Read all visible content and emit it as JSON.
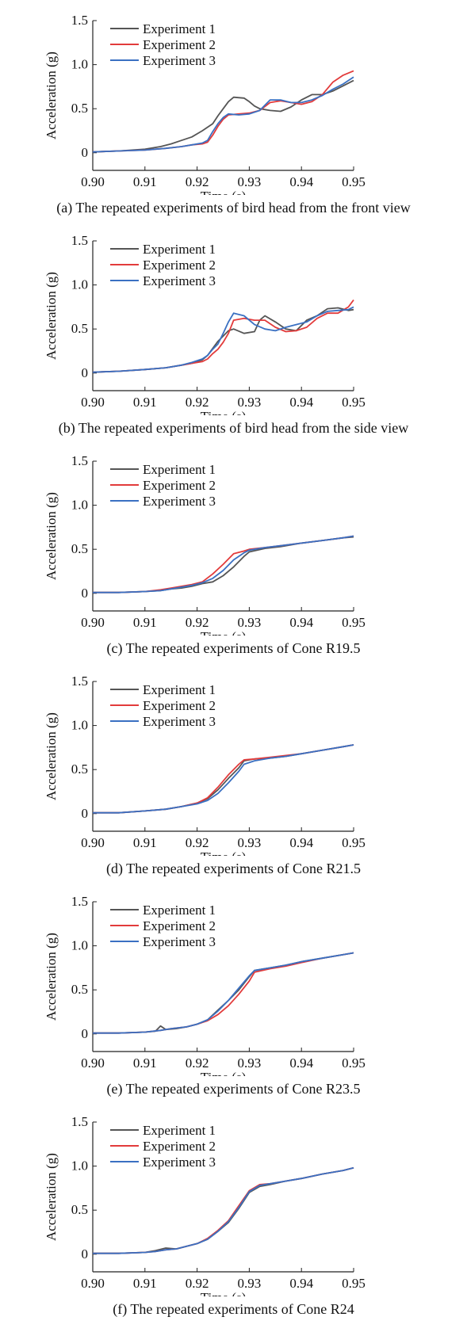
{
  "chart_data": [
    {
      "type": "line",
      "caption": "(a) The repeated experiments of bird head from the front view",
      "xlabel": "Time (s)",
      "ylabel": "Acceleration (g)",
      "xlim": [
        0.9,
        0.95
      ],
      "ylim": [
        -0.2,
        1.5
      ],
      "xticks": [
        "0.90",
        "0.91",
        "0.92",
        "0.93",
        "0.94",
        "0.95"
      ],
      "yticks": [
        "0",
        "0.5",
        "1.0",
        "1.5"
      ],
      "grid": false,
      "legend": "top-left",
      "series": [
        {
          "name": "Experiment 1",
          "color": "#555555",
          "x": [
            0.9,
            0.905,
            0.91,
            0.913,
            0.915,
            0.917,
            0.919,
            0.921,
            0.923,
            0.924,
            0.925,
            0.926,
            0.927,
            0.929,
            0.93,
            0.931,
            0.932,
            0.934,
            0.936,
            0.938,
            0.94,
            0.942,
            0.944,
            0.946,
            0.948,
            0.95
          ],
          "y": [
            0.01,
            0.02,
            0.04,
            0.07,
            0.1,
            0.14,
            0.18,
            0.25,
            0.33,
            0.42,
            0.5,
            0.58,
            0.63,
            0.62,
            0.58,
            0.53,
            0.5,
            0.48,
            0.47,
            0.52,
            0.6,
            0.66,
            0.66,
            0.7,
            0.76,
            0.82
          ]
        },
        {
          "name": "Experiment 2",
          "color": "#e23b3b",
          "x": [
            0.9,
            0.905,
            0.91,
            0.914,
            0.917,
            0.919,
            0.921,
            0.922,
            0.923,
            0.924,
            0.925,
            0.926,
            0.928,
            0.93,
            0.932,
            0.934,
            0.936,
            0.938,
            0.94,
            0.942,
            0.944,
            0.946,
            0.948,
            0.95
          ],
          "y": [
            0.01,
            0.02,
            0.03,
            0.05,
            0.07,
            0.09,
            0.1,
            0.12,
            0.2,
            0.3,
            0.38,
            0.43,
            0.44,
            0.45,
            0.48,
            0.57,
            0.59,
            0.57,
            0.55,
            0.58,
            0.66,
            0.8,
            0.88,
            0.93
          ]
        },
        {
          "name": "Experiment 3",
          "color": "#3a70c2",
          "x": [
            0.9,
            0.905,
            0.91,
            0.914,
            0.917,
            0.919,
            0.921,
            0.922,
            0.923,
            0.924,
            0.925,
            0.926,
            0.928,
            0.93,
            0.932,
            0.934,
            0.936,
            0.938,
            0.94,
            0.942,
            0.944,
            0.946,
            0.948,
            0.95
          ],
          "y": [
            0.01,
            0.02,
            0.03,
            0.05,
            0.07,
            0.09,
            0.11,
            0.14,
            0.24,
            0.33,
            0.4,
            0.44,
            0.43,
            0.44,
            0.48,
            0.6,
            0.6,
            0.57,
            0.57,
            0.6,
            0.65,
            0.72,
            0.78,
            0.86
          ]
        }
      ]
    },
    {
      "type": "line",
      "caption": "(b) The repeated experiments of bird head from the side view",
      "xlabel": "Time (s)",
      "ylabel": "Acceleration (g)",
      "xlim": [
        0.9,
        0.95
      ],
      "ylim": [
        -0.2,
        1.5
      ],
      "xticks": [
        "0.90",
        "0.91",
        "0.92",
        "0.93",
        "0.94",
        "0.95"
      ],
      "yticks": [
        "0",
        "0.5",
        "1.0",
        "1.5"
      ],
      "grid": false,
      "legend": "top-left",
      "series": [
        {
          "name": "Experiment 1",
          "color": "#555555",
          "x": [
            0.9,
            0.905,
            0.91,
            0.914,
            0.917,
            0.919,
            0.921,
            0.922,
            0.923,
            0.924,
            0.925,
            0.926,
            0.927,
            0.929,
            0.931,
            0.932,
            0.933,
            0.935,
            0.937,
            0.939,
            0.941,
            0.943,
            0.945,
            0.947,
            0.949,
            0.95
          ],
          "y": [
            0.01,
            0.02,
            0.04,
            0.06,
            0.09,
            0.11,
            0.15,
            0.2,
            0.28,
            0.36,
            0.42,
            0.48,
            0.5,
            0.45,
            0.47,
            0.6,
            0.65,
            0.58,
            0.5,
            0.48,
            0.6,
            0.65,
            0.73,
            0.74,
            0.71,
            0.72
          ]
        },
        {
          "name": "Experiment 2",
          "color": "#e23b3b",
          "x": [
            0.9,
            0.905,
            0.91,
            0.914,
            0.917,
            0.919,
            0.921,
            0.922,
            0.923,
            0.924,
            0.925,
            0.926,
            0.927,
            0.929,
            0.931,
            0.933,
            0.935,
            0.937,
            0.939,
            0.941,
            0.943,
            0.945,
            0.947,
            0.949,
            0.95
          ],
          "y": [
            0.01,
            0.02,
            0.04,
            0.06,
            0.09,
            0.11,
            0.13,
            0.16,
            0.22,
            0.27,
            0.35,
            0.45,
            0.6,
            0.62,
            0.6,
            0.6,
            0.52,
            0.47,
            0.48,
            0.52,
            0.62,
            0.68,
            0.68,
            0.75,
            0.83
          ]
        },
        {
          "name": "Experiment 3",
          "color": "#3a70c2",
          "x": [
            0.9,
            0.905,
            0.91,
            0.914,
            0.917,
            0.919,
            0.921,
            0.922,
            0.923,
            0.924,
            0.925,
            0.926,
            0.927,
            0.929,
            0.931,
            0.933,
            0.935,
            0.937,
            0.939,
            0.941,
            0.943,
            0.945,
            0.947,
            0.949,
            0.95
          ],
          "y": [
            0.01,
            0.02,
            0.04,
            0.06,
            0.09,
            0.12,
            0.16,
            0.2,
            0.27,
            0.33,
            0.45,
            0.58,
            0.68,
            0.65,
            0.55,
            0.5,
            0.48,
            0.52,
            0.55,
            0.58,
            0.65,
            0.7,
            0.71,
            0.72,
            0.75
          ]
        }
      ]
    },
    {
      "type": "line",
      "caption": "(c) The repeated experiments of Cone R19.5",
      "xlabel": "Time (s)",
      "ylabel": "Acceleration (g)",
      "xlim": [
        0.9,
        0.95
      ],
      "ylim": [
        -0.2,
        1.5
      ],
      "xticks": [
        "0.90",
        "0.91",
        "0.92",
        "0.93",
        "0.94",
        "0.95"
      ],
      "yticks": [
        "0",
        "0.5",
        "1.0",
        "1.5"
      ],
      "grid": false,
      "legend": "top-left",
      "series": [
        {
          "name": "Experiment 1",
          "color": "#555555",
          "x": [
            0.9,
            0.905,
            0.91,
            0.913,
            0.915,
            0.917,
            0.919,
            0.921,
            0.923,
            0.925,
            0.927,
            0.929,
            0.93,
            0.933,
            0.936,
            0.94,
            0.944,
            0.948,
            0.95
          ],
          "y": [
            0.01,
            0.01,
            0.02,
            0.03,
            0.05,
            0.06,
            0.08,
            0.11,
            0.13,
            0.2,
            0.3,
            0.42,
            0.47,
            0.51,
            0.53,
            0.57,
            0.6,
            0.63,
            0.64
          ]
        },
        {
          "name": "Experiment 2",
          "color": "#e23b3b",
          "x": [
            0.9,
            0.905,
            0.91,
            0.913,
            0.915,
            0.917,
            0.919,
            0.921,
            0.923,
            0.925,
            0.927,
            0.929,
            0.93,
            0.933,
            0.936,
            0.94,
            0.944,
            0.948,
            0.95
          ],
          "y": [
            0.01,
            0.01,
            0.02,
            0.04,
            0.06,
            0.08,
            0.1,
            0.13,
            0.22,
            0.33,
            0.45,
            0.48,
            0.5,
            0.52,
            0.54,
            0.57,
            0.6,
            0.63,
            0.65
          ]
        },
        {
          "name": "Experiment 3",
          "color": "#3a70c2",
          "x": [
            0.9,
            0.905,
            0.91,
            0.913,
            0.915,
            0.917,
            0.919,
            0.921,
            0.923,
            0.925,
            0.927,
            0.929,
            0.93,
            0.933,
            0.936,
            0.94,
            0.944,
            0.948,
            0.95
          ],
          "y": [
            0.01,
            0.01,
            0.02,
            0.03,
            0.05,
            0.07,
            0.09,
            0.12,
            0.17,
            0.26,
            0.38,
            0.46,
            0.49,
            0.52,
            0.54,
            0.57,
            0.6,
            0.63,
            0.65
          ]
        }
      ]
    },
    {
      "type": "line",
      "caption": "(d) The repeated experiments of Cone R21.5",
      "xlabel": "Time (s)",
      "ylabel": "Acceleration (g)",
      "xlim": [
        0.9,
        0.95
      ],
      "ylim": [
        -0.2,
        1.5
      ],
      "xticks": [
        "0.90",
        "0.91",
        "0.92",
        "0.93",
        "0.94",
        "0.95"
      ],
      "yticks": [
        "0",
        "0.5",
        "1.0",
        "1.5"
      ],
      "grid": false,
      "legend": "top-left",
      "series": [
        {
          "name": "Experiment 1",
          "color": "#555555",
          "x": [
            0.9,
            0.905,
            0.91,
            0.914,
            0.917,
            0.92,
            0.922,
            0.924,
            0.926,
            0.928,
            0.929,
            0.931,
            0.934,
            0.937,
            0.94,
            0.944,
            0.948,
            0.95
          ],
          "y": [
            0.01,
            0.01,
            0.03,
            0.05,
            0.08,
            0.12,
            0.17,
            0.27,
            0.4,
            0.52,
            0.6,
            0.62,
            0.63,
            0.65,
            0.68,
            0.72,
            0.76,
            0.78
          ]
        },
        {
          "name": "Experiment 2",
          "color": "#e23b3b",
          "x": [
            0.9,
            0.905,
            0.91,
            0.914,
            0.917,
            0.92,
            0.922,
            0.924,
            0.926,
            0.928,
            0.929,
            0.931,
            0.934,
            0.937,
            0.94,
            0.944,
            0.948,
            0.95
          ],
          "y": [
            0.01,
            0.01,
            0.03,
            0.05,
            0.08,
            0.12,
            0.18,
            0.3,
            0.44,
            0.56,
            0.61,
            0.62,
            0.64,
            0.66,
            0.68,
            0.72,
            0.76,
            0.78
          ]
        },
        {
          "name": "Experiment 3",
          "color": "#3a70c2",
          "x": [
            0.9,
            0.905,
            0.91,
            0.914,
            0.917,
            0.92,
            0.922,
            0.924,
            0.926,
            0.928,
            0.929,
            0.931,
            0.934,
            0.937,
            0.94,
            0.944,
            0.948,
            0.95
          ],
          "y": [
            0.01,
            0.01,
            0.03,
            0.05,
            0.08,
            0.11,
            0.15,
            0.23,
            0.35,
            0.48,
            0.56,
            0.6,
            0.63,
            0.65,
            0.68,
            0.72,
            0.76,
            0.78
          ]
        }
      ]
    },
    {
      "type": "line",
      "caption": "(e) The repeated experiments of Cone R23.5",
      "xlabel": "Time (s)",
      "ylabel": "Acceleration (g)",
      "xlim": [
        0.9,
        0.95
      ],
      "ylim": [
        -0.2,
        1.5
      ],
      "xticks": [
        "0.90",
        "0.91",
        "0.92",
        "0.93",
        "0.94",
        "0.95"
      ],
      "yticks": [
        "0",
        "0.5",
        "1.0",
        "1.5"
      ],
      "grid": false,
      "legend": "top-left",
      "series": [
        {
          "name": "Experiment 1",
          "color": "#555555",
          "x": [
            0.9,
            0.905,
            0.91,
            0.912,
            0.913,
            0.914,
            0.916,
            0.918,
            0.92,
            0.922,
            0.924,
            0.926,
            0.928,
            0.93,
            0.931,
            0.934,
            0.937,
            0.94,
            0.944,
            0.948,
            0.95
          ],
          "y": [
            0.01,
            0.01,
            0.02,
            0.03,
            0.09,
            0.05,
            0.06,
            0.08,
            0.11,
            0.16,
            0.27,
            0.38,
            0.5,
            0.65,
            0.72,
            0.75,
            0.78,
            0.82,
            0.86,
            0.9,
            0.92
          ]
        },
        {
          "name": "Experiment 2",
          "color": "#e23b3b",
          "x": [
            0.9,
            0.905,
            0.91,
            0.913,
            0.915,
            0.918,
            0.92,
            0.922,
            0.924,
            0.926,
            0.928,
            0.93,
            0.931,
            0.934,
            0.937,
            0.94,
            0.944,
            0.948,
            0.95
          ],
          "y": [
            0.01,
            0.01,
            0.02,
            0.04,
            0.06,
            0.08,
            0.11,
            0.15,
            0.22,
            0.32,
            0.45,
            0.6,
            0.7,
            0.74,
            0.77,
            0.81,
            0.86,
            0.9,
            0.92
          ]
        },
        {
          "name": "Experiment 3",
          "color": "#3a70c2",
          "x": [
            0.9,
            0.905,
            0.91,
            0.913,
            0.915,
            0.918,
            0.92,
            0.922,
            0.924,
            0.926,
            0.928,
            0.93,
            0.931,
            0.934,
            0.937,
            0.94,
            0.944,
            0.948,
            0.95
          ],
          "y": [
            0.01,
            0.01,
            0.02,
            0.04,
            0.06,
            0.08,
            0.11,
            0.16,
            0.26,
            0.38,
            0.52,
            0.66,
            0.72,
            0.75,
            0.78,
            0.82,
            0.86,
            0.9,
            0.92
          ]
        }
      ]
    },
    {
      "type": "line",
      "caption": "(f) The repeated experiments of Cone R24",
      "xlabel": "Time (s)",
      "ylabel": "Acceleration (g)",
      "xlim": [
        0.9,
        0.95
      ],
      "ylim": [
        -0.2,
        1.5
      ],
      "xticks": [
        "0.90",
        "0.91",
        "0.92",
        "0.93",
        "0.94",
        "0.95"
      ],
      "yticks": [
        "0",
        "0.5",
        "1.0",
        "1.5"
      ],
      "grid": false,
      "legend": "top-left",
      "series": [
        {
          "name": "Experiment 1",
          "color": "#555555",
          "x": [
            0.9,
            0.905,
            0.91,
            0.912,
            0.914,
            0.916,
            0.918,
            0.92,
            0.922,
            0.924,
            0.926,
            0.928,
            0.93,
            0.932,
            0.934,
            0.937,
            0.94,
            0.944,
            0.948,
            0.95
          ],
          "y": [
            0.01,
            0.01,
            0.02,
            0.04,
            0.07,
            0.06,
            0.09,
            0.12,
            0.17,
            0.26,
            0.36,
            0.52,
            0.7,
            0.77,
            0.79,
            0.83,
            0.86,
            0.91,
            0.95,
            0.98
          ]
        },
        {
          "name": "Experiment 2",
          "color": "#e23b3b",
          "x": [
            0.9,
            0.905,
            0.91,
            0.912,
            0.914,
            0.916,
            0.918,
            0.92,
            0.922,
            0.924,
            0.926,
            0.928,
            0.93,
            0.932,
            0.934,
            0.937,
            0.94,
            0.944,
            0.948,
            0.95
          ],
          "y": [
            0.01,
            0.01,
            0.02,
            0.03,
            0.05,
            0.06,
            0.09,
            0.12,
            0.18,
            0.27,
            0.38,
            0.55,
            0.72,
            0.79,
            0.8,
            0.83,
            0.86,
            0.91,
            0.95,
            0.98
          ]
        },
        {
          "name": "Experiment 3",
          "color": "#3a70c2",
          "x": [
            0.9,
            0.905,
            0.91,
            0.912,
            0.914,
            0.916,
            0.918,
            0.92,
            0.922,
            0.924,
            0.926,
            0.928,
            0.93,
            0.932,
            0.934,
            0.937,
            0.94,
            0.944,
            0.948,
            0.95
          ],
          "y": [
            0.01,
            0.01,
            0.02,
            0.03,
            0.05,
            0.06,
            0.09,
            0.12,
            0.17,
            0.26,
            0.37,
            0.53,
            0.71,
            0.78,
            0.8,
            0.83,
            0.86,
            0.91,
            0.95,
            0.98
          ]
        }
      ]
    }
  ]
}
